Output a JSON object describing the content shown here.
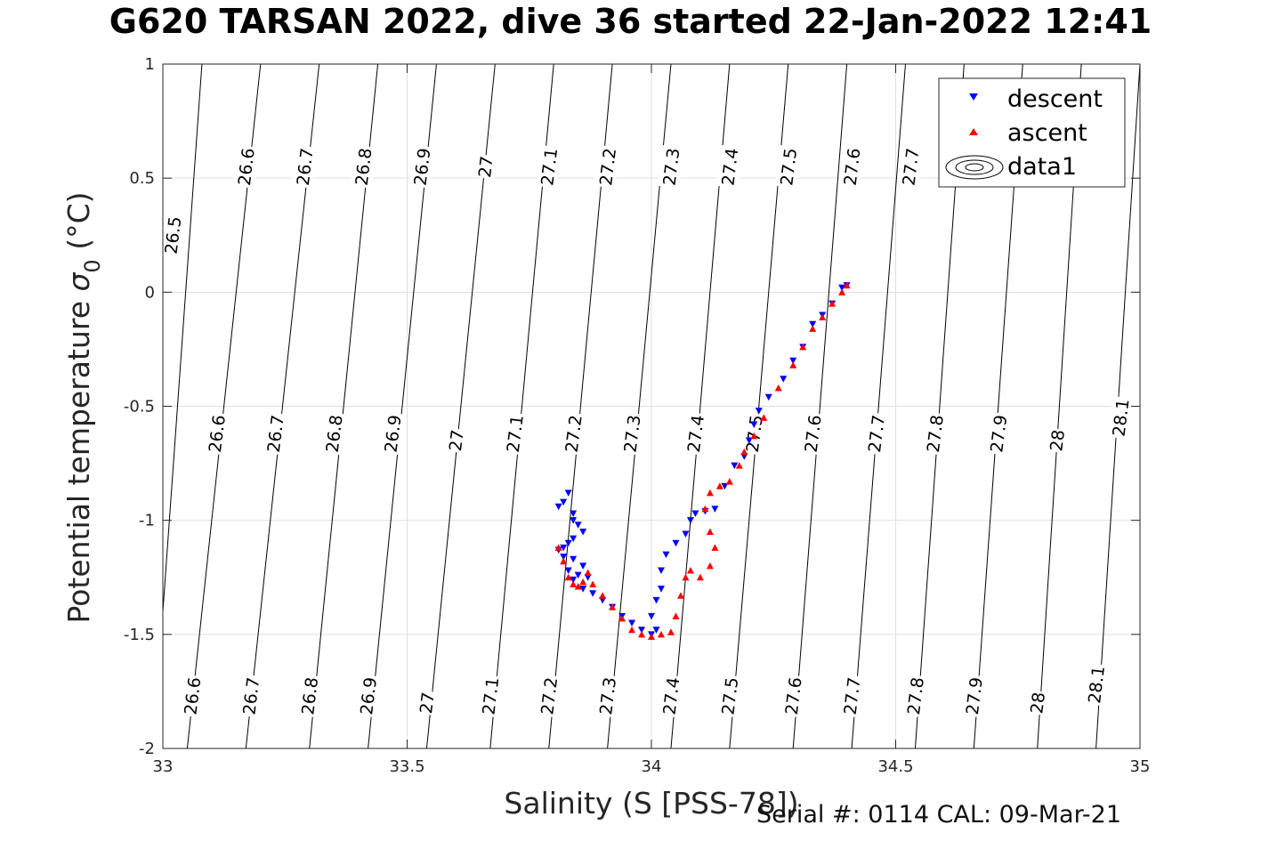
{
  "chart_data": {
    "type": "scatter",
    "title": "G620 TARSAN 2022, dive 36 started 22-Jan-2022 12:41",
    "xlabel": "Salinity (S [PSS-78])",
    "ylabel_main": "Potential temperature ",
    "ylabel_sigma": "σ",
    "ylabel_sub": "0",
    "ylabel_unit": " (°C)",
    "xlim": [
      33,
      35
    ],
    "ylim": [
      -2,
      1
    ],
    "xticks": [
      33,
      33.5,
      34,
      34.5,
      35
    ],
    "xtick_labels": [
      "33",
      "33.5",
      "34",
      "34.5",
      "35"
    ],
    "yticks": [
      1,
      0.5,
      0,
      -0.5,
      -1,
      -1.5,
      -2
    ],
    "ytick_labels": [
      "1",
      "0.5",
      "0",
      "-0.5",
      "-1",
      "-1.5",
      "-2"
    ],
    "grid": true,
    "legend_position": "top-right",
    "legend": [
      {
        "label": "descent",
        "marker": "triangle-down",
        "color": "#0000ff"
      },
      {
        "label": "ascent",
        "marker": "triangle-up",
        "color": "#ff0000"
      },
      {
        "label": "data1",
        "marker": "contour",
        "color": "#000000"
      }
    ],
    "density_contours": {
      "levels": [
        26.5,
        26.6,
        26.7,
        26.8,
        26.9,
        27,
        27.1,
        27.2,
        27.3,
        27.4,
        27.5,
        27.6,
        27.7,
        27.8,
        27.9,
        28,
        28.1
      ],
      "salinity_at_top": [
        33.08,
        33.2,
        33.32,
        33.44,
        33.56,
        33.68,
        33.8,
        33.92,
        34.04,
        34.16,
        34.28,
        34.4,
        34.52,
        34.64,
        34.76,
        34.88,
        35.0
      ],
      "salinity_at_bottom": [
        32.98,
        33.05,
        33.17,
        33.3,
        33.42,
        33.54,
        33.67,
        33.79,
        33.91,
        34.04,
        34.16,
        34.29,
        34.41,
        34.54,
        34.66,
        34.79,
        34.91
      ],
      "labels": [
        {
          "text": "26.5",
          "s": 33.02,
          "t": 0.25
        },
        {
          "text": "26.6",
          "s": 33.17,
          "t": 0.55
        },
        {
          "text": "26.7",
          "s": 33.29,
          "t": 0.55
        },
        {
          "text": "26.8",
          "s": 33.41,
          "t": 0.55
        },
        {
          "text": "26.9",
          "s": 33.53,
          "t": 0.55
        },
        {
          "text": "27",
          "s": 33.66,
          "t": 0.55
        },
        {
          "text": "27.1",
          "s": 33.79,
          "t": 0.55
        },
        {
          "text": "27.2",
          "s": 33.91,
          "t": 0.55
        },
        {
          "text": "27.3",
          "s": 34.04,
          "t": 0.55
        },
        {
          "text": "27.4",
          "s": 34.16,
          "t": 0.55
        },
        {
          "text": "27.5",
          "s": 34.28,
          "t": 0.55
        },
        {
          "text": "27.6",
          "s": 34.41,
          "t": 0.55
        },
        {
          "text": "27.7",
          "s": 34.53,
          "t": 0.55
        },
        {
          "text": "26.6",
          "s": 33.11,
          "t": -0.62
        },
        {
          "text": "26.7",
          "s": 33.23,
          "t": -0.62
        },
        {
          "text": "26.8",
          "s": 33.35,
          "t": -0.62
        },
        {
          "text": "26.9",
          "s": 33.47,
          "t": -0.62
        },
        {
          "text": "27",
          "s": 33.6,
          "t": -0.65
        },
        {
          "text": "27.1",
          "s": 33.72,
          "t": -0.62
        },
        {
          "text": "27.2",
          "s": 33.84,
          "t": -0.62
        },
        {
          "text": "27.3",
          "s": 33.96,
          "t": -0.62
        },
        {
          "text": "27.4",
          "s": 34.09,
          "t": -0.62
        },
        {
          "text": "27.5",
          "s": 34.21,
          "t": -0.62
        },
        {
          "text": "27.6",
          "s": 34.33,
          "t": -0.62
        },
        {
          "text": "27.7",
          "s": 34.46,
          "t": -0.62
        },
        {
          "text": "27.8",
          "s": 34.58,
          "t": -0.62
        },
        {
          "text": "27.9",
          "s": 34.71,
          "t": -0.62
        },
        {
          "text": "28",
          "s": 34.83,
          "t": -0.65
        },
        {
          "text": "28.1",
          "s": 34.96,
          "t": -0.55
        },
        {
          "text": "26.6",
          "s": 33.06,
          "t": -1.77
        },
        {
          "text": "26.7",
          "s": 33.18,
          "t": -1.77
        },
        {
          "text": "26.8",
          "s": 33.3,
          "t": -1.77
        },
        {
          "text": "26.9",
          "s": 33.42,
          "t": -1.77
        },
        {
          "text": "27",
          "s": 33.54,
          "t": -1.8
        },
        {
          "text": "27.1",
          "s": 33.67,
          "t": -1.77
        },
        {
          "text": "27.2",
          "s": 33.79,
          "t": -1.77
        },
        {
          "text": "27.3",
          "s": 33.91,
          "t": -1.77
        },
        {
          "text": "27.4",
          "s": 34.04,
          "t": -1.77
        },
        {
          "text": "27.5",
          "s": 34.16,
          "t": -1.77
        },
        {
          "text": "27.6",
          "s": 34.29,
          "t": -1.77
        },
        {
          "text": "27.7",
          "s": 34.41,
          "t": -1.77
        },
        {
          "text": "27.8",
          "s": 34.54,
          "t": -1.77
        },
        {
          "text": "27.9",
          "s": 34.66,
          "t": -1.77
        },
        {
          "text": "28",
          "s": 34.79,
          "t": -1.8
        },
        {
          "text": "28.1",
          "s": 34.91,
          "t": -1.72
        }
      ]
    },
    "series": [
      {
        "name": "descent",
        "marker": "triangle-down",
        "color": "#0000ff",
        "points": [
          [
            33.81,
            -0.94
          ],
          [
            33.82,
            -0.92
          ],
          [
            33.83,
            -0.88
          ],
          [
            33.84,
            -0.97
          ],
          [
            33.84,
            -1.0
          ],
          [
            33.85,
            -1.02
          ],
          [
            33.86,
            -1.05
          ],
          [
            33.84,
            -1.08
          ],
          [
            33.83,
            -1.1
          ],
          [
            33.82,
            -1.12
          ],
          [
            33.81,
            -1.13
          ],
          [
            33.82,
            -1.16
          ],
          [
            33.84,
            -1.17
          ],
          [
            33.83,
            -1.22
          ],
          [
            33.84,
            -1.26
          ],
          [
            33.85,
            -1.24
          ],
          [
            33.86,
            -1.2
          ],
          [
            33.87,
            -1.25
          ],
          [
            33.86,
            -1.3
          ],
          [
            33.88,
            -1.32
          ],
          [
            33.9,
            -1.35
          ],
          [
            33.92,
            -1.38
          ],
          [
            33.94,
            -1.42
          ],
          [
            33.96,
            -1.45
          ],
          [
            33.98,
            -1.48
          ],
          [
            34.0,
            -1.5
          ],
          [
            34.01,
            -1.48
          ],
          [
            34.0,
            -1.42
          ],
          [
            34.01,
            -1.35
          ],
          [
            34.02,
            -1.3
          ],
          [
            34.02,
            -1.22
          ],
          [
            34.03,
            -1.15
          ],
          [
            34.05,
            -1.1
          ],
          [
            34.07,
            -1.06
          ],
          [
            34.08,
            -1.0
          ],
          [
            34.09,
            -0.97
          ],
          [
            34.11,
            -0.96
          ],
          [
            34.13,
            -0.95
          ],
          [
            34.15,
            -0.85
          ],
          [
            34.17,
            -0.76
          ],
          [
            34.19,
            -0.72
          ],
          [
            34.2,
            -0.65
          ],
          [
            34.21,
            -0.58
          ],
          [
            34.22,
            -0.52
          ],
          [
            34.24,
            -0.46
          ],
          [
            34.27,
            -0.38
          ],
          [
            34.29,
            -0.3
          ],
          [
            34.31,
            -0.24
          ],
          [
            34.33,
            -0.14
          ],
          [
            34.35,
            -0.1
          ],
          [
            34.37,
            -0.05
          ],
          [
            34.39,
            0.02
          ],
          [
            34.4,
            0.03
          ]
        ]
      },
      {
        "name": "ascent",
        "marker": "triangle-up",
        "color": "#ff0000",
        "points": [
          [
            33.81,
            -1.12
          ],
          [
            33.82,
            -1.18
          ],
          [
            33.83,
            -1.25
          ],
          [
            33.84,
            -1.28
          ],
          [
            33.85,
            -1.29
          ],
          [
            33.86,
            -1.27
          ],
          [
            33.87,
            -1.23
          ],
          [
            33.88,
            -1.28
          ],
          [
            33.9,
            -1.33
          ],
          [
            33.92,
            -1.38
          ],
          [
            33.94,
            -1.43
          ],
          [
            33.96,
            -1.48
          ],
          [
            33.98,
            -1.5
          ],
          [
            34.0,
            -1.51
          ],
          [
            34.02,
            -1.5
          ],
          [
            34.04,
            -1.49
          ],
          [
            34.05,
            -1.42
          ],
          [
            34.06,
            -1.33
          ],
          [
            34.07,
            -1.25
          ],
          [
            34.08,
            -1.22
          ],
          [
            34.1,
            -1.25
          ],
          [
            34.12,
            -1.2
          ],
          [
            34.13,
            -1.12
          ],
          [
            34.12,
            -1.05
          ],
          [
            34.11,
            -0.95
          ],
          [
            34.12,
            -0.88
          ],
          [
            34.14,
            -0.85
          ],
          [
            34.16,
            -0.83
          ],
          [
            34.18,
            -0.76
          ],
          [
            34.19,
            -0.7
          ],
          [
            34.21,
            -0.63
          ],
          [
            34.23,
            -0.55
          ],
          [
            34.26,
            -0.42
          ],
          [
            34.29,
            -0.32
          ],
          [
            34.31,
            -0.24
          ],
          [
            34.33,
            -0.16
          ],
          [
            34.35,
            -0.11
          ],
          [
            34.37,
            -0.05
          ],
          [
            34.39,
            0.0
          ],
          [
            34.4,
            0.03
          ]
        ]
      }
    ]
  },
  "footer": "Serial #: 0114  CAL: 09-Mar-21"
}
